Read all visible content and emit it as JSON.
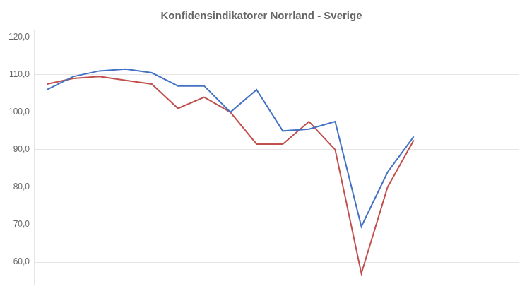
{
  "chart_data": {
    "type": "line",
    "title": "Konfidensindikatorer Norrland - Sverige",
    "x": [
      0,
      1,
      2,
      3,
      4,
      5,
      6,
      7,
      8,
      9,
      10,
      11,
      12,
      13,
      14
    ],
    "series": [
      {
        "color": "#4472C4",
        "values": [
          106.0,
          109.5,
          111.0,
          111.5,
          110.5,
          107.0,
          107.0,
          100.0,
          106.0,
          95.0,
          95.5,
          97.5,
          69.5,
          84.0,
          93.5
        ]
      },
      {
        "color": "#C0504D",
        "values": [
          107.5,
          109.0,
          109.5,
          108.5,
          107.5,
          101.0,
          104.0,
          100.0,
          91.5,
          91.5,
          97.5,
          90.0,
          57.0,
          80.0,
          92.5
        ]
      }
    ],
    "xlim": [
      -0.5,
      18
    ],
    "xticks": [],
    "ylim": [
      54,
      122
    ],
    "yticks": [
      {
        "value": 60,
        "label": "60,0"
      },
      {
        "value": 70,
        "label": "70,0"
      },
      {
        "value": 80,
        "label": "80,0"
      },
      {
        "value": 90,
        "label": "90,0"
      },
      {
        "value": 100,
        "label": "100,0"
      },
      {
        "value": 110,
        "label": "110,0"
      },
      {
        "value": 120,
        "label": "120,0"
      }
    ],
    "grid": true,
    "tick_labels": "y"
  }
}
